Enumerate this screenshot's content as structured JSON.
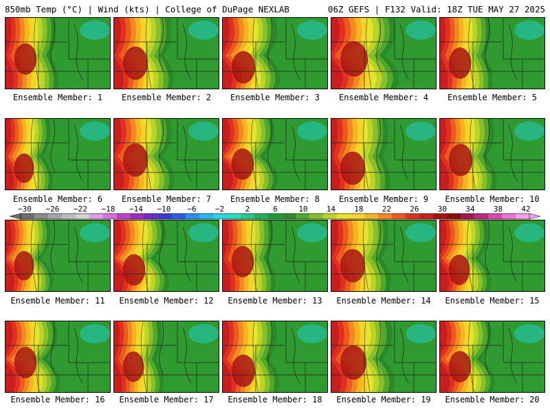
{
  "header": {
    "left": "850mb Temp (°C) | Wind (kts) | College of DuPage NEXLAB",
    "right": "06Z GEFS | F132 Valid: 18Z TUE MAY 27 2025"
  },
  "colorbar": {
    "tick_labels": [
      "−30",
      "−26",
      "−22",
      "−18",
      "−14",
      "−10",
      "−6",
      "−2",
      "2",
      "6",
      "10",
      "14",
      "18",
      "22",
      "26",
      "30",
      "34",
      "38",
      "42"
    ],
    "colors": [
      "#6e6e6e",
      "#8c8c8c",
      "#a6a6a6",
      "#bcbcbc",
      "#d0d0d0",
      "#e19ae5",
      "#d670dc",
      "#c040d0",
      "#9a2cc8",
      "#6a2ad0",
      "#3a3ad8",
      "#2a5ae6",
      "#2a8ef0",
      "#26b6f0",
      "#28d6e0",
      "#2cdcc0",
      "#28c890",
      "#22b060",
      "#1e9a3c",
      "#2a8a2a",
      "#52a82a",
      "#86c02a",
      "#bcd42a",
      "#e4e42a",
      "#f6d426",
      "#f6b422",
      "#f28a20",
      "#ec5a1e",
      "#e03020",
      "#c81e1e",
      "#a81414",
      "#8a0c0c",
      "#a41850",
      "#c02880",
      "#d848b0",
      "#ec70d8",
      "#f8a0ec"
    ]
  },
  "panels": [
    {
      "label": "Ensemble Member: 1",
      "heat": 0.35
    },
    {
      "label": "Ensemble Member: 2",
      "heat": 0.45
    },
    {
      "label": "Ensemble Member: 3",
      "heat": 0.4
    },
    {
      "label": "Ensemble Member: 4",
      "heat": 0.55
    },
    {
      "label": "Ensemble Member: 5",
      "heat": 0.35
    },
    {
      "label": "Ensemble Member: 6",
      "heat": 0.25
    },
    {
      "label": "Ensemble Member: 7",
      "heat": 0.45
    },
    {
      "label": "Ensemble Member: 8",
      "heat": 0.35
    },
    {
      "label": "Ensemble Member: 9",
      "heat": 0.45
    },
    {
      "label": "Ensemble Member: 10",
      "heat": 0.4
    },
    {
      "label": "Ensemble Member: 11",
      "heat": 0.25
    },
    {
      "label": "Ensemble Member: 12",
      "heat": 0.35
    },
    {
      "label": "Ensemble Member: 13",
      "heat": 0.35
    },
    {
      "label": "Ensemble Member: 14",
      "heat": 0.45
    },
    {
      "label": "Ensemble Member: 15",
      "heat": 0.3
    },
    {
      "label": "Ensemble Member: 16",
      "heat": 0.35
    },
    {
      "label": "Ensemble Member: 17",
      "heat": 0.3
    },
    {
      "label": "Ensemble Member: 18",
      "heat": 0.4
    },
    {
      "label": "Ensemble Member: 19",
      "heat": 0.5
    },
    {
      "label": "Ensemble Member: 20",
      "heat": 0.35
    }
  ]
}
